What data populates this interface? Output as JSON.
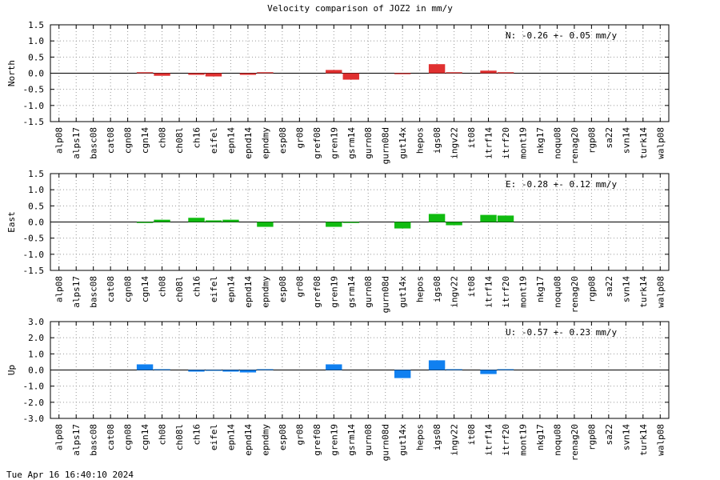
{
  "chart_data": {
    "type": "bar",
    "title": "Velocity comparison of JOZ2 in mm/y",
    "categories": [
      "alp08",
      "alps17",
      "basc08",
      "cat08",
      "cgn08",
      "cgn14",
      "ch08",
      "ch08l",
      "ch16",
      "eifel",
      "epn14",
      "epnd14",
      "epndmy",
      "esp08",
      "gr08",
      "gref08",
      "gren19",
      "gsrm14",
      "gurn08",
      "gurn08d",
      "gut14x",
      "hepos",
      "igs08",
      "ingv22",
      "it08",
      "itrf14",
      "itrf20",
      "mont19",
      "nkg17",
      "noqu08",
      "renag20",
      "rgp08",
      "sa22",
      "svn14",
      "turk14",
      "walp08"
    ],
    "panels": [
      {
        "ylabel": "North",
        "color": "#e03030",
        "ylim": [
          -1.5,
          1.5
        ],
        "yticks": [
          "1.5",
          "1.0",
          "0.5",
          "0.0",
          "-0.5",
          "-1.0",
          "-1.5"
        ],
        "stat_text": "N:  -0.26 +-  0.05 mm/y",
        "values": [
          0,
          0,
          0,
          0,
          0,
          0.03,
          -0.08,
          0,
          -0.05,
          -0.1,
          0,
          -0.05,
          0.03,
          0,
          0,
          0,
          0.1,
          -0.2,
          0,
          0,
          -0.03,
          0,
          0.28,
          0.03,
          0,
          0.08,
          0.03,
          0,
          0,
          0,
          0,
          0,
          0,
          0,
          0,
          0
        ]
      },
      {
        "ylabel": "East",
        "color": "#10bb10",
        "ylim": [
          -1.5,
          1.5
        ],
        "yticks": [
          "1.5",
          "1.0",
          "0.5",
          "0.0",
          "-0.5",
          "-1.0",
          "-1.5"
        ],
        "stat_text": "E:  -0.28 +-  0.12 mm/y",
        "values": [
          0,
          0,
          0,
          0,
          0,
          -0.03,
          0.07,
          0,
          0.13,
          0.05,
          0.07,
          0,
          -0.15,
          0,
          0,
          0,
          -0.15,
          -0.03,
          0,
          0,
          -0.2,
          0,
          0.25,
          -0.1,
          0,
          0.22,
          0.2,
          0,
          0,
          0,
          0,
          0,
          0,
          0,
          0,
          0
        ]
      },
      {
        "ylabel": "Up",
        "color": "#1080f0",
        "ylim": [
          -3.0,
          3.0
        ],
        "yticks": [
          "3.0",
          "2.0",
          "1.0",
          "0.0",
          "-1.0",
          "-2.0",
          "-3.0"
        ],
        "stat_text": "U:  -0.57 +-  0.23 mm/y",
        "values": [
          0,
          0,
          0,
          0,
          0,
          0.35,
          0.05,
          0,
          -0.1,
          -0.05,
          -0.1,
          -0.15,
          0.05,
          0,
          0,
          0,
          0.35,
          0,
          0,
          0,
          -0.5,
          0,
          0.6,
          0.05,
          0,
          -0.25,
          0.05,
          0,
          0,
          0,
          0,
          0,
          0,
          0,
          0,
          0
        ]
      }
    ],
    "grid": true
  },
  "footer": {
    "timestamp": "Tue Apr 16 16:40:10 2024"
  }
}
